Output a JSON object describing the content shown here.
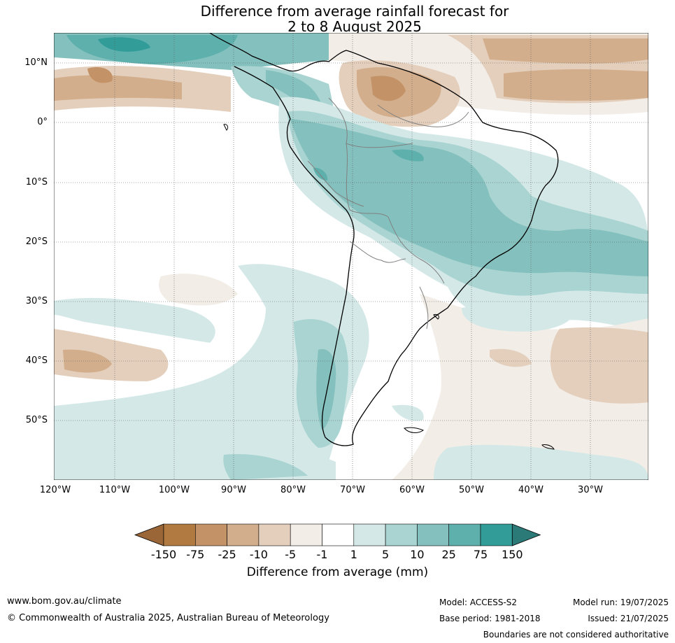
{
  "title": {
    "line1": "Difference from average rainfall forecast for",
    "line2": "2 to 8 August 2025"
  },
  "map": {
    "lat_labels": [
      "10°N",
      "0°",
      "10°S",
      "20°S",
      "30°S",
      "40°S",
      "50°S"
    ],
    "lon_labels": [
      "120°W",
      "110°W",
      "100°W",
      "90°W",
      "80°W",
      "70°W",
      "60°W",
      "50°W",
      "40°W",
      "30°W"
    ]
  },
  "colorbar": {
    "label": "Difference from average (mm)",
    "ticks": [
      "-150",
      "-75",
      "-25",
      "-10",
      "-5",
      "-1",
      "1",
      "5",
      "10",
      "25",
      "75",
      "150"
    ],
    "colors": [
      "#9a6637",
      "#b07a40",
      "#c39267",
      "#d2ae8c",
      "#e4cfbc",
      "#f2ede7",
      "#ffffff",
      "#d4e9e7",
      "#a9d4d2",
      "#84c0bd",
      "#5eb0ad",
      "#329c99",
      "#2b7a78"
    ]
  },
  "footer": {
    "website": "www.bom.gov.au/climate",
    "copyright": "© Commonwealth of Australia 2025, Australian Bureau of Meteorology",
    "model": "Model: ACCESS-S2",
    "base_period": "Base period: 1981-2018",
    "model_run": "Model run: 19/07/2025",
    "issued": "Issued: 21/07/2025",
    "boundaries": "Boundaries are not considered authoritative"
  }
}
